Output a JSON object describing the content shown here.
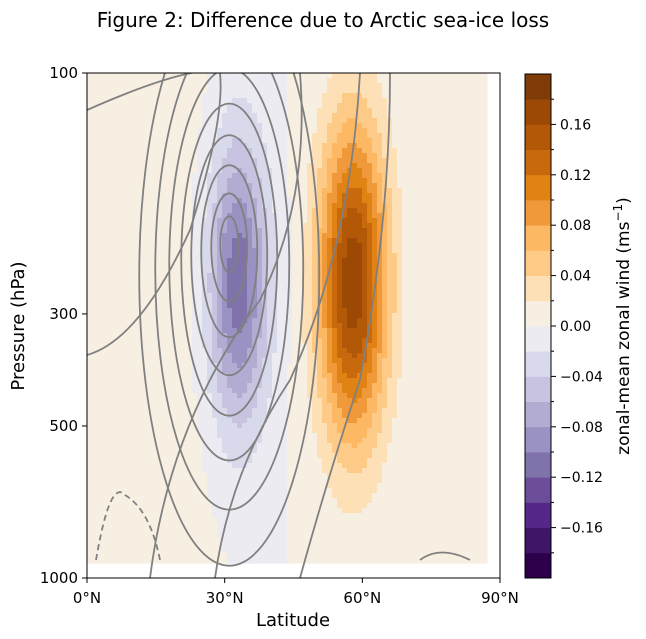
{
  "chart_data": {
    "type": "contour",
    "title": "Figure 2: Difference due to Arctic sea-ice loss",
    "xlabel": "Latitude",
    "ylabel": "Pressure (hPa)",
    "x_ticks": [
      "0°N",
      "30°N",
      "60°N",
      "90°N"
    ],
    "x_tick_values": [
      0,
      30,
      60,
      90
    ],
    "y_ticks": [
      "100",
      "300",
      "500",
      "1000"
    ],
    "y_tick_values": [
      100,
      300,
      500,
      1000
    ],
    "y_scale": "log (inverted, 100 at top)",
    "xlim": [
      0,
      90
    ],
    "ylim": [
      1000,
      100
    ],
    "filled_field": {
      "name": "zonal-mean zonal wind difference",
      "units": "m s^-1",
      "levels": [
        -0.18,
        -0.16,
        -0.14,
        -0.12,
        -0.1,
        -0.08,
        -0.06,
        -0.04,
        -0.02,
        0.0,
        0.02,
        0.04,
        0.06,
        0.08,
        0.1,
        0.12,
        0.14,
        0.16,
        0.18
      ],
      "colormap": "PuOr (purple negative, brown positive)",
      "features": [
        {
          "sign": "negative",
          "center_lat": 33,
          "center_p": 250,
          "approx_min": -0.11
        },
        {
          "sign": "positive",
          "center_lat": 58,
          "center_p": 250,
          "approx_max": 0.17
        }
      ]
    },
    "colorbar": {
      "label": "zonal-mean zonal wind (ms",
      "label_sup": "−1",
      "label_end": ")",
      "tick_labels": [
        "−0.16",
        "−0.12",
        "−0.08",
        "−0.04",
        "0.00",
        "0.04",
        "0.08",
        "0.12",
        "0.16"
      ],
      "tick_values": [
        -0.16,
        -0.12,
        -0.08,
        -0.04,
        0.0,
        0.04,
        0.08,
        0.12,
        0.16
      ],
      "colors": [
        "#2d004b",
        "#3f1667",
        "#542788",
        "#6b4d9a",
        "#8073ac",
        "#9b92c4",
        "#b2abd2",
        "#c8c3e0",
        "#d8daeb",
        "#ecebf2",
        "#f7efe2",
        "#fee0b6",
        "#fdcb87",
        "#fdb863",
        "#f0993a",
        "#e08214",
        "#c8690e",
        "#b35806",
        "#9c4905",
        "#7f3b08"
      ]
    },
    "line_contours": "climatological zonal wind (grey; dashed where negative), jet core near 30°N",
    "legend": "none",
    "grid": false
  },
  "colors": {
    "contour_line": "#808080",
    "axis": "#000000",
    "background": "#ffffff"
  }
}
